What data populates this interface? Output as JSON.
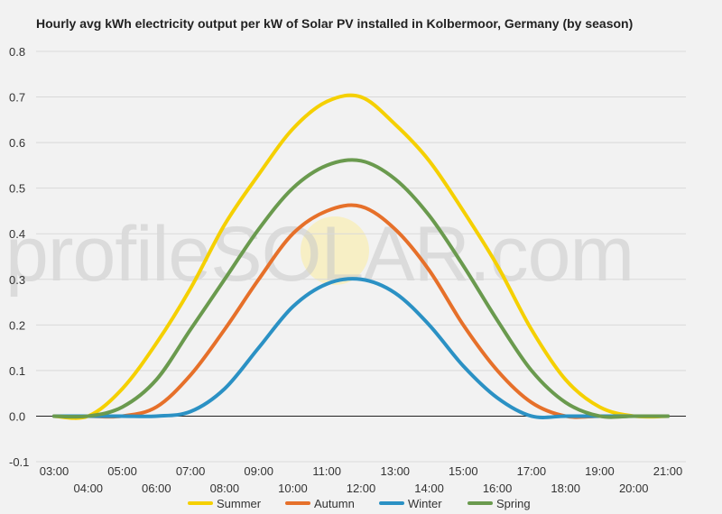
{
  "title": "Hourly avg kWh electricity output per kW of Solar PV installed in Kolbermoor, Germany (by season)",
  "watermark": "profileSOLAR.com",
  "colors": {
    "Summer": "#f5d000",
    "Autumn": "#e6702a",
    "Winter": "#2b91c4",
    "Spring": "#6a9a4e",
    "grid": "#d9d9d9",
    "zero_line": "#222222",
    "background": "#f2f2f2"
  },
  "chart_data": {
    "type": "line",
    "title": "Hourly avg kWh electricity output per kW of Solar PV installed in Kolbermoor, Germany (by season)",
    "xlabel": "",
    "ylabel": "",
    "ylim": [
      -0.1,
      0.8
    ],
    "yticks": [
      "0.8",
      "0.7",
      "0.6",
      "0.5",
      "0.4",
      "0.3",
      "0.2",
      "0.1",
      "0.0",
      "-0.1"
    ],
    "x": [
      "03:00",
      "04:00",
      "05:00",
      "06:00",
      "07:00",
      "08:00",
      "09:00",
      "10:00",
      "11:00",
      "12:00",
      "13:00",
      "14:00",
      "15:00",
      "16:00",
      "17:00",
      "18:00",
      "19:00",
      "20:00",
      "21:00"
    ],
    "grid": true,
    "legend_position": "bottom",
    "series": [
      {
        "name": "Summer",
        "values": [
          0.0,
          0.0,
          0.06,
          0.16,
          0.28,
          0.42,
          0.53,
          0.63,
          0.69,
          0.7,
          0.64,
          0.56,
          0.45,
          0.33,
          0.19,
          0.08,
          0.02,
          0.0,
          0.0
        ]
      },
      {
        "name": "Autumn",
        "values": [
          0.0,
          0.0,
          0.0,
          0.02,
          0.09,
          0.19,
          0.3,
          0.4,
          0.45,
          0.46,
          0.41,
          0.32,
          0.2,
          0.1,
          0.03,
          0.0,
          0.0,
          0.0,
          0.0
        ]
      },
      {
        "name": "Winter",
        "values": [
          0.0,
          0.0,
          0.0,
          0.0,
          0.01,
          0.06,
          0.15,
          0.24,
          0.29,
          0.3,
          0.27,
          0.2,
          0.11,
          0.04,
          0.0,
          0.0,
          0.0,
          0.0,
          0.0
        ]
      },
      {
        "name": "Spring",
        "values": [
          0.0,
          0.0,
          0.02,
          0.08,
          0.19,
          0.3,
          0.41,
          0.5,
          0.55,
          0.56,
          0.52,
          0.44,
          0.33,
          0.21,
          0.1,
          0.03,
          0.0,
          0.0,
          0.0
        ]
      }
    ]
  },
  "legend": [
    {
      "label": "Summer"
    },
    {
      "label": "Autumn"
    },
    {
      "label": "Winter"
    },
    {
      "label": "Spring"
    }
  ]
}
